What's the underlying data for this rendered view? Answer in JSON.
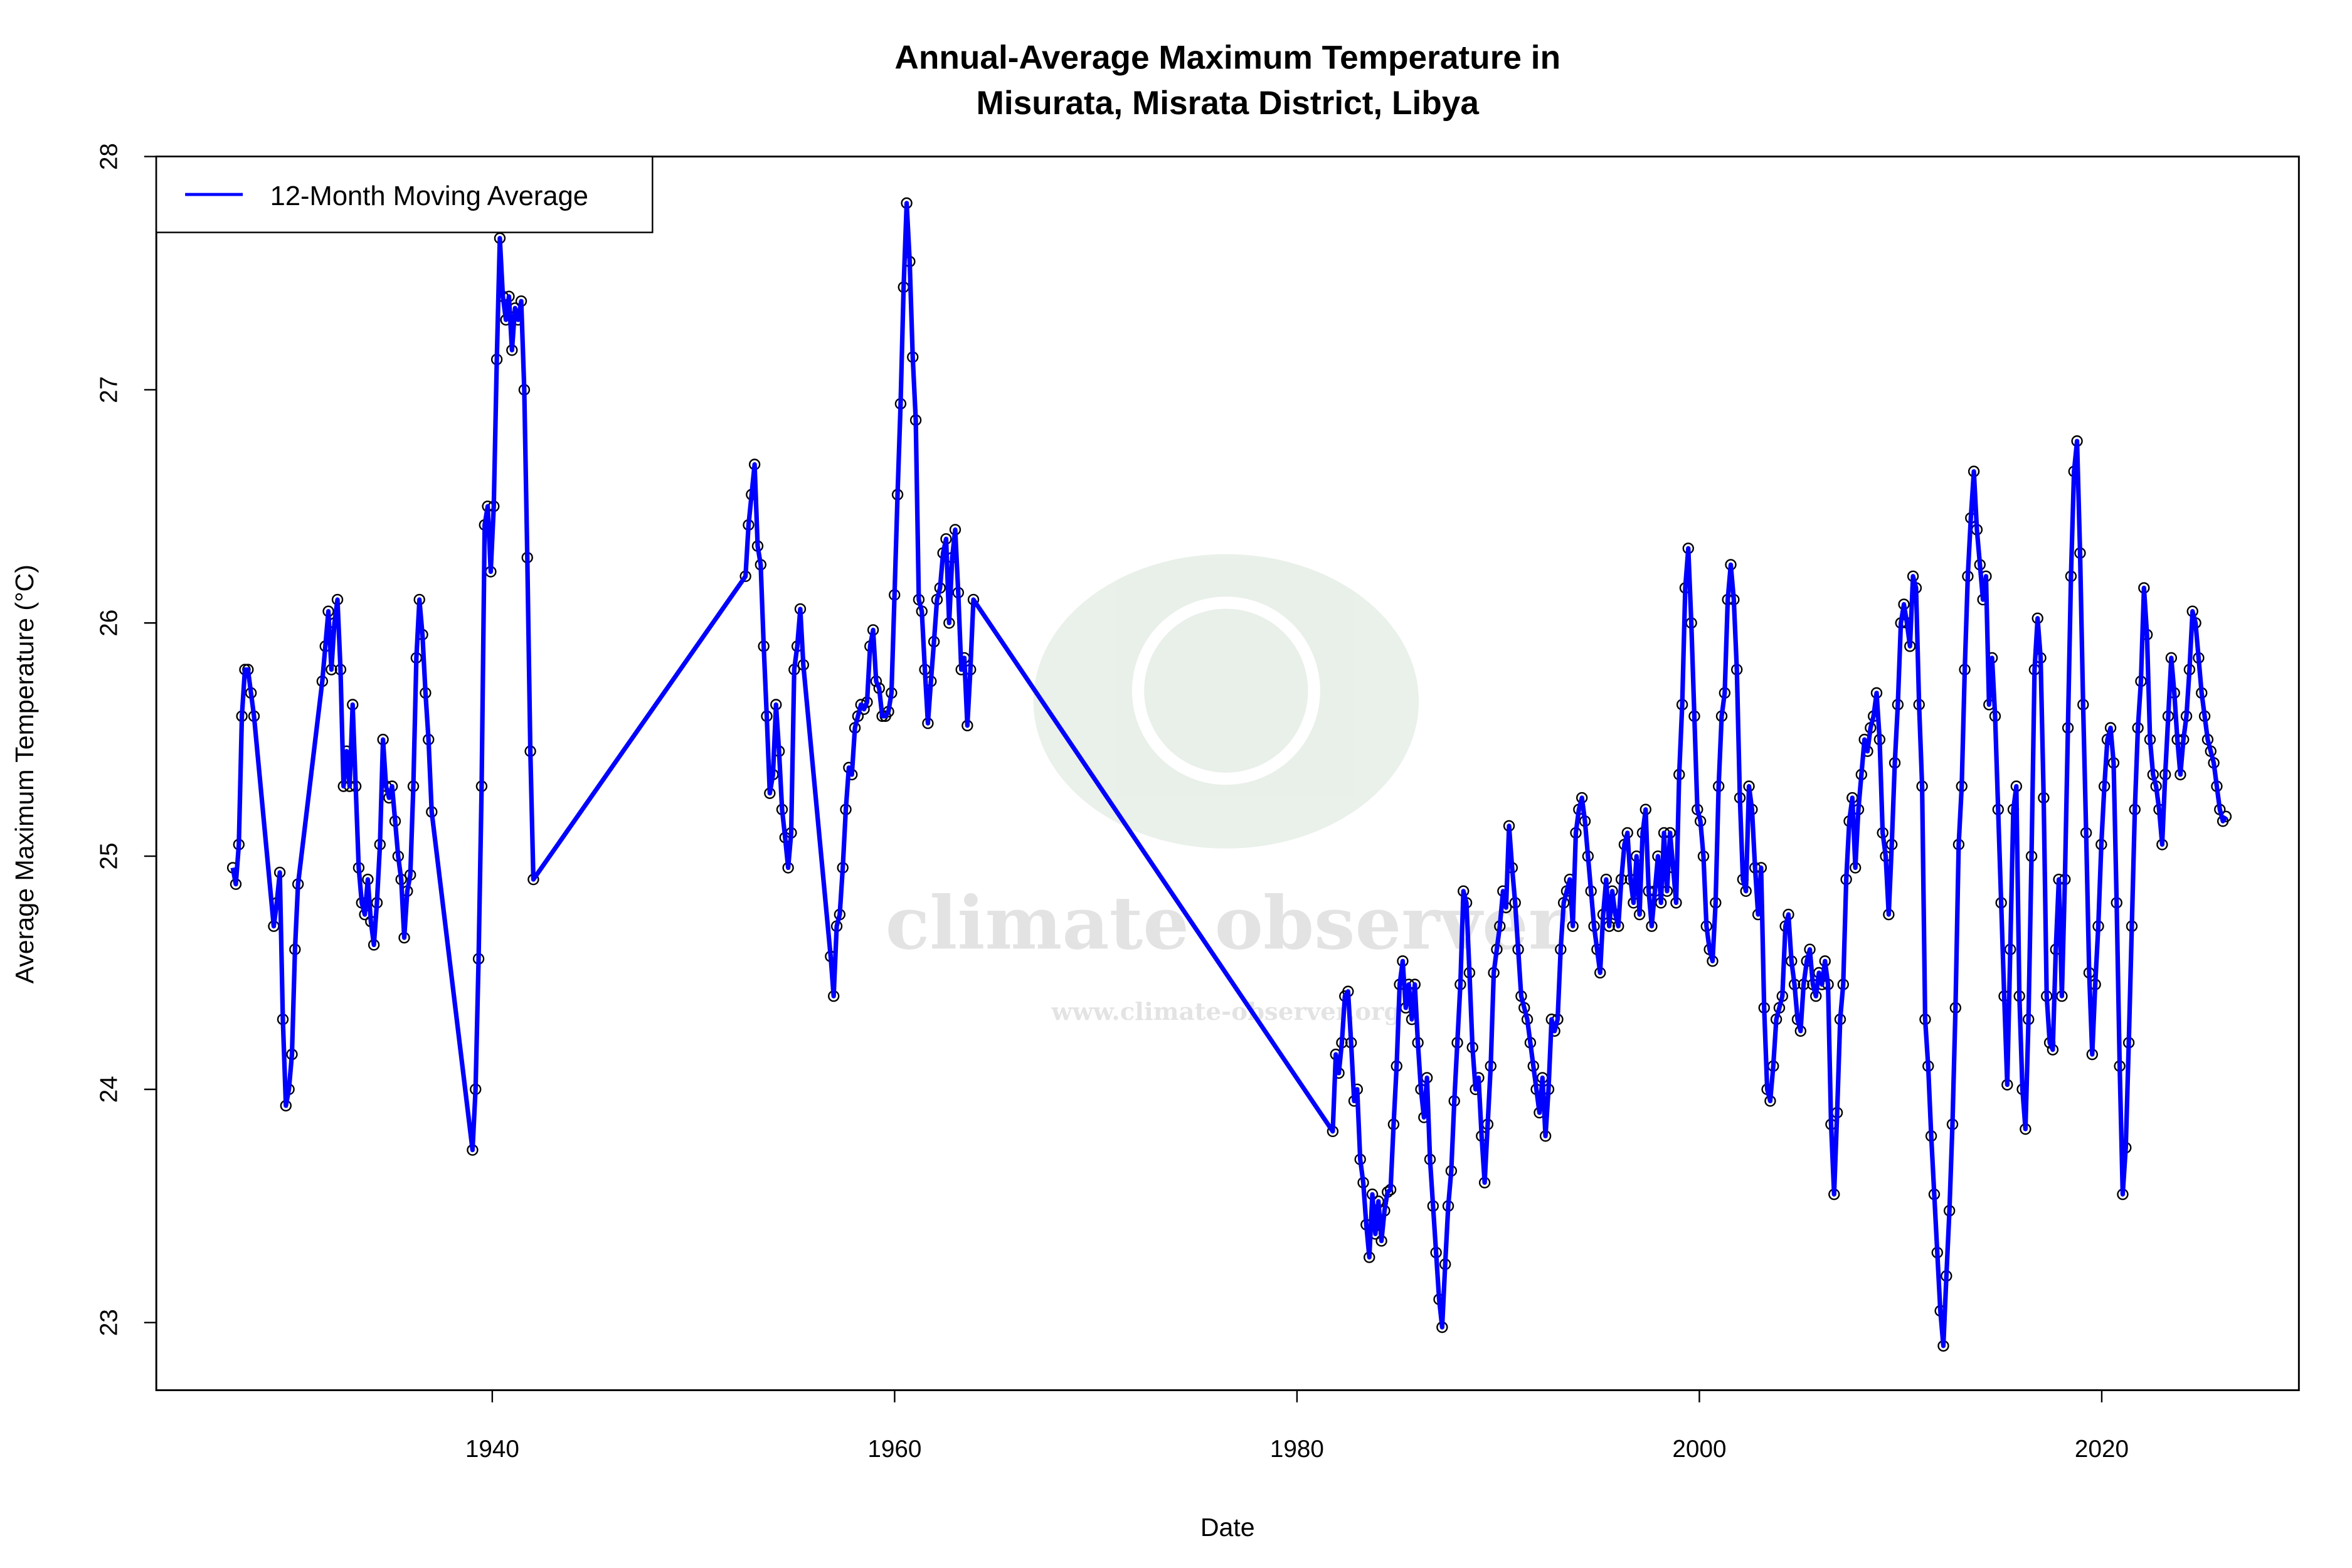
{
  "chart_data": {
    "type": "line",
    "title": [
      "Annual-Average Maximum Temperature in",
      "Misurata, Misrata District, Libya"
    ],
    "xlabel": "Date",
    "ylabel": "Average Maximum Temperature (°C)",
    "xlim": [
      1923.3,
      2029.8
    ],
    "ylim": [
      22.71,
      28.0
    ],
    "xticks": [
      1940,
      1960,
      1980,
      2000,
      2020
    ],
    "yticks": [
      23,
      24,
      25,
      26,
      27,
      28
    ],
    "grid": false,
    "legend": {
      "position": "top-left",
      "entries": [
        {
          "label": "12-Month Moving Average",
          "color": "#0000ff"
        }
      ]
    },
    "series_color": "#0000ff",
    "marker_color": "#000000",
    "segments_note": "points evenly spaced within each segment; segments joined by the line",
    "segments": [
      {
        "start": 1927.1,
        "step": 0.151,
        "values": [
          24.95,
          24.88,
          25.05,
          25.6,
          25.8,
          25.8,
          25.7,
          25.6
        ]
      },
      {
        "start": 1929.14,
        "step": 0.151,
        "values": [
          24.7,
          24.8,
          24.93,
          24.3,
          23.93,
          24.0,
          24.15,
          24.6,
          24.88
        ]
      },
      {
        "start": 1931.55,
        "step": 0.151,
        "values": [
          25.75,
          25.9,
          26.05,
          25.8,
          26.0,
          26.1,
          25.8,
          25.3,
          25.45,
          25.3,
          25.65,
          25.3,
          24.95,
          24.8,
          24.75,
          24.9,
          24.72,
          24.62,
          24.8,
          25.05,
          25.5,
          25.3,
          25.25,
          25.3,
          25.15,
          25.0,
          24.9,
          24.65,
          24.85,
          24.92,
          25.3,
          25.85,
          26.1,
          25.95,
          25.7,
          25.5,
          25.19
        ]
      },
      {
        "start": 1939.02,
        "step": 0.151,
        "values": [
          23.74,
          24.0,
          24.56,
          25.3,
          26.42,
          26.5,
          26.22,
          26.5,
          27.13,
          27.65,
          27.4,
          27.3,
          27.4,
          27.17,
          27.35,
          27.3,
          27.38,
          27.0,
          26.28,
          25.45,
          24.9
        ]
      },
      {
        "start": 1952.59,
        "step": 0.151,
        "values": [
          26.2,
          26.42,
          26.55,
          26.68,
          26.33,
          26.25,
          25.9,
          25.6,
          25.27,
          25.35,
          25.65,
          25.45,
          25.2,
          25.08,
          24.95,
          25.1,
          25.8,
          25.9,
          26.06,
          25.82
        ]
      },
      {
        "start": 1956.82,
        "step": 0.151,
        "values": [
          24.57,
          24.4,
          24.7,
          24.75,
          24.95,
          25.2,
          25.38,
          25.35,
          25.55,
          25.6,
          25.65,
          25.63,
          25.66,
          25.9,
          25.97,
          25.75,
          25.72,
          25.6,
          25.6,
          25.62,
          25.7,
          26.12,
          26.55,
          26.94,
          27.44,
          27.8,
          27.55,
          27.14,
          26.87,
          26.1,
          26.05,
          25.8,
          25.57,
          25.75,
          25.92,
          26.1,
          26.15,
          26.3,
          26.36,
          26.0,
          26.28,
          26.4,
          26.13,
          25.8,
          25.85,
          25.56,
          25.8,
          26.1
        ]
      },
      {
        "start": 1981.78,
        "step": 0.151,
        "values": [
          23.82,
          24.15,
          24.07,
          24.2,
          24.4,
          24.42,
          24.2,
          23.95,
          24.0,
          23.7,
          23.6,
          23.42,
          23.28,
          23.55,
          23.38,
          23.52,
          23.35,
          23.48,
          23.56,
          23.57,
          23.85,
          24.1,
          24.45,
          24.55,
          24.35,
          24.45,
          24.3,
          24.45,
          24.2,
          24.0,
          23.88,
          24.05,
          23.7,
          23.5,
          23.3,
          23.1,
          22.98,
          23.25,
          23.5,
          23.65,
          23.95,
          24.2,
          24.45,
          24.85,
          24.8,
          24.5,
          24.18,
          24.0,
          24.05,
          23.8,
          23.6,
          23.85,
          24.1,
          24.5,
          24.6,
          24.7,
          24.85,
          24.78,
          25.13,
          24.95,
          24.8,
          24.6,
          24.4,
          24.35,
          24.3,
          24.2,
          24.1,
          24.0,
          23.9,
          24.05,
          23.8,
          24.0,
          24.3,
          24.25,
          24.3,
          24.6,
          24.8,
          24.85,
          24.9,
          24.7,
          25.1,
          25.2,
          25.25,
          25.15,
          25.0,
          24.85,
          24.7,
          24.6,
          24.5,
          24.75,
          24.9,
          24.7,
          24.85,
          24.75,
          24.7,
          24.9,
          25.05,
          25.1,
          24.9,
          24.8,
          25.0,
          24.75,
          25.1,
          25.2,
          24.85,
          24.7,
          24.85,
          25.0,
          24.8,
          25.1,
          24.85,
          25.1,
          24.95,
          24.8,
          25.35,
          25.65,
          26.15,
          26.32,
          26.0,
          25.6,
          25.2,
          25.15,
          25.0,
          24.7,
          24.6,
          24.55,
          24.8,
          25.3,
          25.6,
          25.7,
          26.1,
          26.25,
          26.1,
          25.8,
          25.25,
          24.9,
          24.85,
          25.3,
          25.2,
          24.95,
          24.75,
          24.95,
          24.35,
          24.0,
          23.95,
          24.1,
          24.3,
          24.35,
          24.4,
          24.7,
          24.75,
          24.55,
          24.45,
          24.3,
          24.25,
          24.45,
          24.55,
          24.6,
          24.45,
          24.4,
          24.5,
          24.45,
          24.55,
          24.45,
          23.85,
          23.55,
          23.9,
          24.3,
          24.45,
          24.9,
          25.15,
          25.25,
          24.95,
          25.2,
          25.35,
          25.5,
          25.45,
          25.55,
          25.6,
          25.7,
          25.5,
          25.1,
          25.0,
          24.75,
          25.05,
          25.4,
          25.65,
          26.0,
          26.08,
          26.0,
          25.9,
          26.2,
          26.15,
          25.65,
          25.3,
          24.3,
          24.1,
          23.8,
          23.55,
          23.3,
          23.05,
          22.9,
          23.2,
          23.48,
          23.85,
          24.35,
          25.05,
          25.3,
          25.8,
          26.2,
          26.45,
          26.65,
          26.4,
          26.25,
          26.1,
          26.2,
          25.65,
          25.85,
          25.6,
          25.2,
          24.8,
          24.4,
          24.02,
          24.6,
          25.2,
          25.3,
          24.4,
          24.0,
          23.83,
          24.3,
          25.0,
          25.8,
          26.02,
          25.85,
          25.25,
          24.4,
          24.2,
          24.17,
          24.6,
          24.9,
          24.4,
          24.9,
          25.55,
          26.2,
          26.65,
          26.78,
          26.3,
          25.65,
          25.1,
          24.5,
          24.15,
          24.45,
          24.7,
          25.05,
          25.3,
          25.5,
          25.55,
          25.4,
          24.8,
          24.1,
          23.55,
          23.75,
          24.2,
          24.7,
          25.2,
          25.55,
          25.75,
          26.15,
          25.95,
          25.5,
          25.35,
          25.3,
          25.2,
          25.05,
          25.35,
          25.6,
          25.85,
          25.7,
          25.5,
          25.35,
          25.5,
          25.6,
          25.8,
          26.05,
          26.0,
          25.85,
          25.7,
          25.6,
          25.5,
          25.45,
          25.4,
          25.3,
          25.2,
          25.15,
          25.17
        ]
      }
    ]
  },
  "watermark": {
    "text": "climate observer",
    "url_text": "www.climate-observer.org"
  }
}
